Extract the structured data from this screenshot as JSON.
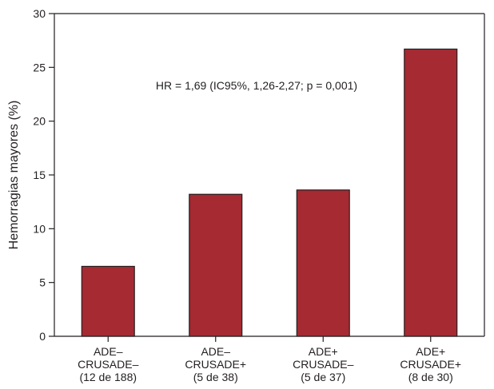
{
  "chart_data": {
    "type": "bar",
    "categories": [
      [
        "ADE–",
        "CRUSADE–",
        "(12 de 188)"
      ],
      [
        "ADE–",
        "CRUSADE+",
        "(5 de 38)"
      ],
      [
        "ADE+",
        "CRUSADE–",
        "(5 de 37)"
      ],
      [
        "ADE+",
        "CRUSADE+",
        "(8 de 30)"
      ]
    ],
    "values": [
      6.5,
      13.2,
      13.6,
      26.7
    ],
    "title": "",
    "xlabel": "",
    "ylabel": "Hemorragias mayores (%)",
    "ylim": [
      0,
      30
    ],
    "yticks": [
      "0",
      "5",
      "10",
      "15",
      "20",
      "25",
      "30"
    ],
    "annotation": "HR = 1,69 (IC95%, 1,26-2,27; p = 0,001)",
    "grid": false,
    "legend": "none",
    "bar_color": "#a52a32",
    "bar_edge_color": "#231f20",
    "axis_color": "#231f20"
  }
}
